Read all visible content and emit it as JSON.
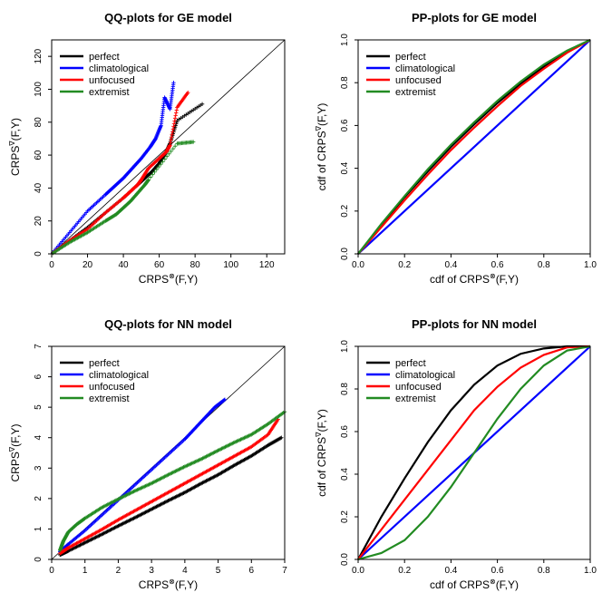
{
  "chart_data": [
    {
      "type": "scatter",
      "title": "QQ-plots for GE model",
      "xlabel": "CRPS(F,Y)",
      "xlabel_sup": "⊗",
      "ylabel": "CRPS(F,Y)",
      "ylabel_sup": "∇",
      "xlim": [
        0,
        130
      ],
      "ylim": [
        0,
        130
      ],
      "xticks": [
        0,
        20,
        40,
        60,
        80,
        100,
        120
      ],
      "yticks": [
        0,
        20,
        40,
        60,
        80,
        100,
        120
      ],
      "reference_line": "y = x",
      "legend_position": "top-left",
      "series": [
        {
          "name": "perfect",
          "color": "#000000",
          "x": [
            0,
            10,
            20,
            30,
            40,
            48,
            52,
            56,
            60,
            64,
            66,
            70,
            84
          ],
          "y": [
            0,
            8,
            16,
            25,
            34,
            42,
            46,
            50,
            55,
            62,
            67,
            81,
            91
          ]
        },
        {
          "name": "climatological",
          "color": "#0000ff",
          "x": [
            0,
            10,
            20,
            30,
            35,
            40,
            45,
            50,
            55,
            58,
            61,
            63,
            66,
            68
          ],
          "y": [
            0,
            13,
            26,
            36,
            41,
            46,
            52,
            58,
            65,
            70,
            78,
            95,
            88,
            104
          ]
        },
        {
          "name": "unfocused",
          "color": "#ff0000",
          "x": [
            0,
            10,
            20,
            30,
            40,
            44,
            48,
            50,
            54,
            60,
            64,
            66,
            70,
            76
          ],
          "y": [
            0,
            8,
            15,
            25,
            34,
            38,
            42,
            45,
            52,
            58,
            62,
            66,
            89,
            98
          ]
        },
        {
          "name": "extremist",
          "color": "#228b22",
          "x": [
            0,
            10,
            20,
            30,
            36,
            40,
            44,
            48,
            52,
            54,
            70,
            79
          ],
          "y": [
            0,
            7,
            13,
            20,
            24,
            28,
            32,
            37,
            42,
            45,
            67,
            68
          ]
        }
      ]
    },
    {
      "type": "line",
      "title": "PP-plots for GE model",
      "xlabel": "cdf of CRPS(F,Y)",
      "xlabel_sup": "⊗",
      "ylabel": "cdf of CRPS(F,Y)",
      "ylabel_sup": "∇",
      "xlim": [
        0,
        1
      ],
      "ylim": [
        0,
        1
      ],
      "xticks": [
        0,
        0.2,
        0.4,
        0.6,
        0.8,
        1
      ],
      "yticks": [
        0,
        0.2,
        0.4,
        0.6,
        0.8,
        1
      ],
      "xtick_labels": [
        "0.0",
        "0.2",
        "0.4",
        "0.6",
        "0.8",
        "1.0"
      ],
      "ytick_labels": [
        "0.0",
        "0.2",
        "0.4",
        "0.6",
        "0.8",
        "1.0"
      ],
      "legend_position": "top-left",
      "series": [
        {
          "name": "perfect",
          "color": "#000000",
          "x": [
            0,
            0.1,
            0.2,
            0.3,
            0.4,
            0.5,
            0.6,
            0.7,
            0.8,
            0.9,
            1
          ],
          "y": [
            0,
            0.135,
            0.265,
            0.385,
            0.5,
            0.605,
            0.705,
            0.795,
            0.875,
            0.945,
            1
          ]
        },
        {
          "name": "climatological",
          "color": "#0000ff",
          "x": [
            0,
            1
          ],
          "y": [
            0,
            1
          ]
        },
        {
          "name": "unfocused",
          "color": "#ff0000",
          "x": [
            0,
            0.1,
            0.2,
            0.3,
            0.4,
            0.5,
            0.6,
            0.7,
            0.8,
            0.9,
            1
          ],
          "y": [
            0,
            0.125,
            0.25,
            0.37,
            0.485,
            0.59,
            0.69,
            0.785,
            0.865,
            0.94,
            1
          ]
        },
        {
          "name": "extremist",
          "color": "#228b22",
          "x": [
            0,
            0.1,
            0.2,
            0.3,
            0.4,
            0.5,
            0.6,
            0.7,
            0.8,
            0.9,
            1
          ],
          "y": [
            0,
            0.14,
            0.27,
            0.395,
            0.51,
            0.615,
            0.715,
            0.805,
            0.885,
            0.95,
            1
          ]
        }
      ]
    },
    {
      "type": "scatter",
      "title": "QQ-plots for NN model",
      "xlabel": "CRPS(F,Y)",
      "xlabel_sup": "⊗",
      "ylabel": "CRPS(F,Y)",
      "ylabel_sup": "∇",
      "xlim": [
        0,
        7
      ],
      "ylim": [
        0,
        7
      ],
      "xticks": [
        0,
        1,
        2,
        3,
        4,
        5,
        6,
        7
      ],
      "yticks": [
        0,
        1,
        2,
        3,
        4,
        5,
        6,
        7
      ],
      "reference_line": "y = x",
      "legend_position": "top-left",
      "series": [
        {
          "name": "perfect",
          "color": "#000000",
          "x": [
            0.25,
            0.5,
            1,
            1.5,
            2,
            2.5,
            3,
            3.5,
            4,
            4.5,
            5,
            5.5,
            6,
            6.5,
            6.9
          ],
          "y": [
            0.15,
            0.28,
            0.55,
            0.82,
            1.1,
            1.37,
            1.65,
            1.93,
            2.2,
            2.5,
            2.78,
            3.1,
            3.4,
            3.75,
            4.0
          ]
        },
        {
          "name": "climatological",
          "color": "#0000ff",
          "x": [
            0.25,
            0.5,
            1,
            1.5,
            2,
            2.5,
            3,
            3.5,
            4,
            4.3,
            4.6,
            4.9,
            5.2
          ],
          "y": [
            0.25,
            0.5,
            0.95,
            1.45,
            1.95,
            2.45,
            2.95,
            3.45,
            3.95,
            4.3,
            4.65,
            5.0,
            5.25
          ]
        },
        {
          "name": "unfocused",
          "color": "#ff0000",
          "x": [
            0.25,
            0.5,
            1,
            1.5,
            2,
            2.5,
            3,
            3.5,
            4,
            4.5,
            5,
            5.5,
            6,
            6.5,
            6.8
          ],
          "y": [
            0.2,
            0.38,
            0.68,
            0.98,
            1.3,
            1.6,
            1.9,
            2.2,
            2.5,
            2.8,
            3.1,
            3.4,
            3.7,
            4.1,
            4.6
          ]
        },
        {
          "name": "extremist",
          "color": "#228b22",
          "x": [
            0.25,
            0.35,
            0.5,
            0.75,
            1,
            1.5,
            2,
            2.5,
            3,
            3.5,
            4,
            4.5,
            5,
            5.5,
            6,
            6.5,
            7
          ],
          "y": [
            0.3,
            0.6,
            0.9,
            1.15,
            1.35,
            1.7,
            1.98,
            2.25,
            2.5,
            2.78,
            3.05,
            3.3,
            3.58,
            3.85,
            4.1,
            4.45,
            4.85
          ]
        }
      ]
    },
    {
      "type": "line",
      "title": "PP-plots for NN model",
      "xlabel": "cdf of CRPS(F,Y)",
      "xlabel_sup": "⊗",
      "ylabel": "cdf of CRPS(F,Y)",
      "ylabel_sup": "∇",
      "xlim": [
        0,
        1
      ],
      "ylim": [
        0,
        1
      ],
      "xticks": [
        0,
        0.2,
        0.4,
        0.6,
        0.8,
        1
      ],
      "yticks": [
        0,
        0.2,
        0.4,
        0.6,
        0.8,
        1
      ],
      "xtick_labels": [
        "0.0",
        "0.2",
        "0.4",
        "0.6",
        "0.8",
        "1.0"
      ],
      "ytick_labels": [
        "0.0",
        "0.2",
        "0.4",
        "0.6",
        "0.8",
        "1.0"
      ],
      "legend_position": "top-left",
      "series": [
        {
          "name": "perfect",
          "color": "#000000",
          "x": [
            0,
            0.1,
            0.2,
            0.3,
            0.4,
            0.5,
            0.6,
            0.7,
            0.8,
            0.9,
            1
          ],
          "y": [
            0,
            0.2,
            0.38,
            0.55,
            0.7,
            0.82,
            0.91,
            0.965,
            0.99,
            1,
            1
          ]
        },
        {
          "name": "climatological",
          "color": "#0000ff",
          "x": [
            0,
            1
          ],
          "y": [
            0,
            1
          ]
        },
        {
          "name": "unfocused",
          "color": "#ff0000",
          "x": [
            0,
            0.1,
            0.2,
            0.3,
            0.4,
            0.5,
            0.6,
            0.7,
            0.8,
            0.9,
            1
          ],
          "y": [
            0,
            0.14,
            0.28,
            0.42,
            0.56,
            0.7,
            0.81,
            0.9,
            0.96,
            0.995,
            1
          ]
        },
        {
          "name": "extremist",
          "color": "#228b22",
          "x": [
            0,
            0.1,
            0.2,
            0.3,
            0.4,
            0.5,
            0.6,
            0.7,
            0.8,
            0.9,
            1
          ],
          "y": [
            0,
            0.03,
            0.09,
            0.2,
            0.34,
            0.5,
            0.66,
            0.8,
            0.91,
            0.98,
            1
          ]
        }
      ]
    }
  ]
}
